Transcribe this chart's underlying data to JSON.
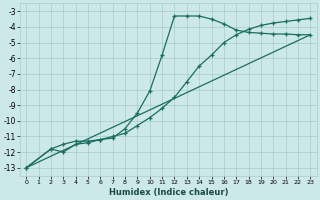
{
  "xlabel": "Humidex (Indice chaleur)",
  "xlim": [
    -0.5,
    23.5
  ],
  "ylim": [
    -13.5,
    -2.5
  ],
  "yticks": [
    -3,
    -4,
    -5,
    -6,
    -7,
    -8,
    -9,
    -10,
    -11,
    -12,
    -13
  ],
  "xticks": [
    0,
    1,
    2,
    3,
    4,
    5,
    6,
    7,
    8,
    9,
    10,
    11,
    12,
    13,
    14,
    15,
    16,
    17,
    18,
    19,
    20,
    21,
    22,
    23
  ],
  "bg_color": "#cce8e8",
  "grid_color": "#aacccc",
  "line_color": "#1a6e60",
  "line1_x": [
    0,
    2,
    3,
    4,
    5,
    6,
    7,
    8,
    9,
    10,
    11,
    12,
    13,
    14,
    15,
    16,
    17,
    18,
    19,
    20,
    21,
    22,
    23
  ],
  "line1_y": [
    -13.0,
    -11.8,
    -11.5,
    -11.3,
    -11.3,
    -11.2,
    -11.1,
    -10.5,
    -9.5,
    -8.1,
    -5.8,
    -3.3,
    -3.3,
    -3.3,
    -3.5,
    -3.8,
    -4.2,
    -4.35,
    -4.4,
    -4.45,
    -4.45,
    -4.5,
    -4.5
  ],
  "line2_x": [
    0,
    2,
    3,
    4,
    5,
    6,
    7,
    8,
    9,
    10,
    11,
    12,
    13,
    14,
    15,
    16,
    17,
    18,
    19,
    20,
    21,
    22,
    23
  ],
  "line2_y": [
    -13.0,
    -11.8,
    -12.0,
    -11.5,
    -11.4,
    -11.2,
    -11.0,
    -10.8,
    -10.3,
    -9.8,
    -9.2,
    -8.5,
    -7.5,
    -6.5,
    -5.8,
    -5.0,
    -4.5,
    -4.15,
    -3.9,
    -3.75,
    -3.65,
    -3.55,
    -3.45
  ],
  "line3_x": [
    0,
    23
  ],
  "line3_y": [
    -13.0,
    -4.5
  ]
}
